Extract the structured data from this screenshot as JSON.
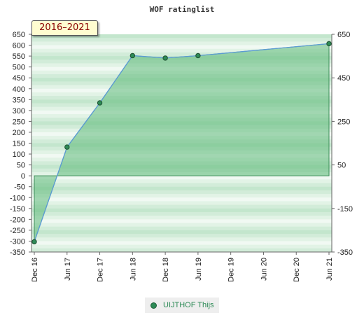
{
  "chart_data": {
    "type": "area",
    "title": "WOF ratinglist",
    "period_label": "2016–2021",
    "left_axis": {
      "ylim": [
        -350,
        650
      ],
      "ticks": [
        650,
        600,
        550,
        500,
        450,
        400,
        350,
        300,
        250,
        200,
        150,
        100,
        50,
        0,
        -50,
        -100,
        -150,
        -200,
        -250,
        -300,
        -350
      ]
    },
    "right_axis": {
      "ticks": [
        650,
        450,
        250,
        50,
        -150,
        -350
      ]
    },
    "x": {
      "categories": [
        "Dec 16",
        "Jun 17",
        "Dec 17",
        "Jun 18",
        "Dec 18",
        "Jun 19",
        "Dec 19",
        "Jun 20",
        "Dec 20",
        "Jun 21"
      ]
    },
    "series": [
      {
        "name": "UIJTHOF Thijs",
        "points": [
          {
            "x": "Dec 16",
            "y": -303
          },
          {
            "x": "Jun 17",
            "y": 132
          },
          {
            "x": "Dec 17",
            "y": 335
          },
          {
            "x": "Jun 18",
            "y": 552
          },
          {
            "x": "Dec 18",
            "y": 541
          },
          {
            "x": "Jun 19",
            "y": 552
          },
          {
            "x": "Jun 21",
            "y": 607
          }
        ]
      }
    ],
    "colors": {
      "area_fill": "#5fb97a",
      "line": "#5b9bd5",
      "marker": "#2e8b57",
      "band_dark": "#bfe3c9",
      "band_light": "#f3faf5"
    },
    "legend": "bottom-center",
    "grid": false
  }
}
